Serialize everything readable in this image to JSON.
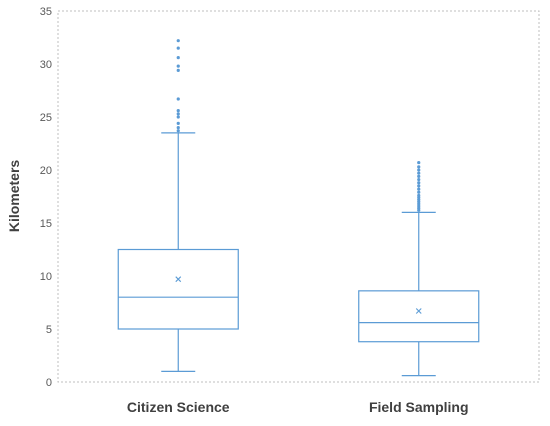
{
  "chart_data": {
    "type": "box",
    "title": "",
    "xlabel": "",
    "ylabel": "Kilometers",
    "ylim": [
      0,
      35
    ],
    "yticks": [
      0,
      5,
      10,
      15,
      20,
      25,
      30,
      35
    ],
    "grid": false,
    "colors": {
      "box": "#5b9bd5",
      "axis": "#bfbfbf",
      "text": "#595959"
    },
    "series": [
      {
        "category": "Citizen Science",
        "whisker_low": 1.0,
        "q1": 5.0,
        "median": 8.0,
        "mean": 9.7,
        "q3": 12.5,
        "whisker_high": 23.5,
        "outliers": [
          23.7,
          24.0,
          24.4,
          25.0,
          25.3,
          25.6,
          26.7,
          29.4,
          29.8,
          30.6,
          31.5,
          32.2
        ]
      },
      {
        "category": "Field Sampling",
        "whisker_low": 0.6,
        "q1": 3.8,
        "median": 5.6,
        "mean": 6.7,
        "q3": 8.6,
        "whisker_high": 16.0,
        "outliers": [
          16.2,
          16.4,
          16.6,
          16.8,
          17.0,
          17.2,
          17.4,
          17.6,
          17.9,
          18.2,
          18.5,
          18.8,
          19.1,
          19.4,
          19.7,
          20.0,
          20.3,
          20.7
        ]
      }
    ]
  }
}
